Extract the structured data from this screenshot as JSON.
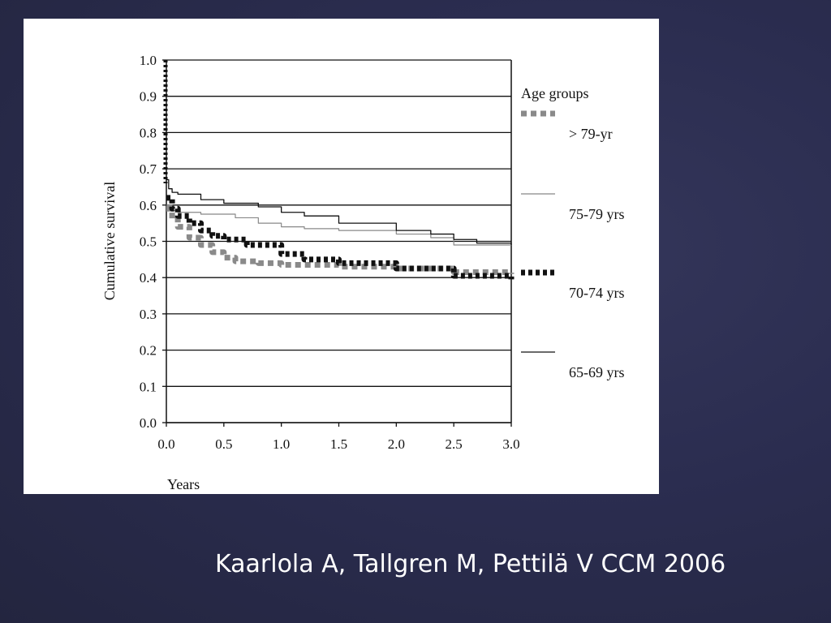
{
  "slide": {
    "citation": "Kaarlola A, Tallgren M, Pettilä V CCM 2006"
  },
  "chart_data": {
    "type": "line",
    "title": "",
    "xlabel": "Years",
    "ylabel": "Cumulative survival",
    "xlim": [
      0,
      3
    ],
    "ylim": [
      0,
      1
    ],
    "x_ticks": [
      "0.0",
      "0.5",
      "1.0",
      "1.5",
      "2.0",
      "2.5",
      "3.0"
    ],
    "y_ticks": [
      "0.0",
      "0.1",
      "0.2",
      "0.3",
      "0.4",
      "0.5",
      "0.6",
      "0.7",
      "0.8",
      "0.9",
      "1.0"
    ],
    "grid": "horizontal",
    "legend": {
      "title": "Age groups",
      "placement": "right",
      "entries": [
        "> 79-yr",
        "75-79 yrs",
        "70-74 yrs",
        "65-69 yrs"
      ]
    },
    "series": [
      {
        "name": "> 79-yr",
        "style": "dotted-gray",
        "color": "#8a8a8a",
        "x": [
          0,
          0.05,
          0.1,
          0.2,
          0.3,
          0.4,
          0.5,
          0.6,
          0.8,
          1.0,
          1.2,
          1.5,
          2.0,
          2.5,
          3.0
        ],
        "y": [
          0.59,
          0.56,
          0.54,
          0.51,
          0.49,
          0.47,
          0.455,
          0.445,
          0.44,
          0.435,
          0.435,
          0.43,
          0.425,
          0.415,
          0.41
        ]
      },
      {
        "name": "75-79 yrs",
        "style": "thin-gray",
        "color": "#888888",
        "x": [
          0,
          0.05,
          0.1,
          0.3,
          0.6,
          0.8,
          1.0,
          1.2,
          1.5,
          2.0,
          2.3,
          2.5,
          3.0
        ],
        "y": [
          0.6,
          0.585,
          0.58,
          0.575,
          0.565,
          0.55,
          0.54,
          0.535,
          0.53,
          0.52,
          0.51,
          0.49,
          0.49
        ]
      },
      {
        "name": "70-74 yrs",
        "style": "dotted-black",
        "color": "#111111",
        "x": [
          0,
          0.05,
          0.1,
          0.2,
          0.3,
          0.4,
          0.5,
          0.7,
          1.0,
          1.2,
          1.5,
          2.0,
          2.5,
          3.0
        ],
        "y": [
          0.62,
          0.59,
          0.57,
          0.55,
          0.53,
          0.515,
          0.505,
          0.49,
          0.465,
          0.45,
          0.44,
          0.425,
          0.405,
          0.395
        ]
      },
      {
        "name": "65-69 yrs",
        "style": "thin-black",
        "color": "#111111",
        "x": [
          0,
          0.02,
          0.05,
          0.1,
          0.3,
          0.5,
          0.8,
          1.0,
          1.2,
          1.5,
          2.0,
          2.3,
          2.5,
          2.7,
          3.0
        ],
        "y": [
          0.67,
          0.645,
          0.635,
          0.63,
          0.615,
          0.605,
          0.595,
          0.58,
          0.57,
          0.55,
          0.53,
          0.52,
          0.505,
          0.495,
          0.49
        ]
      }
    ]
  }
}
